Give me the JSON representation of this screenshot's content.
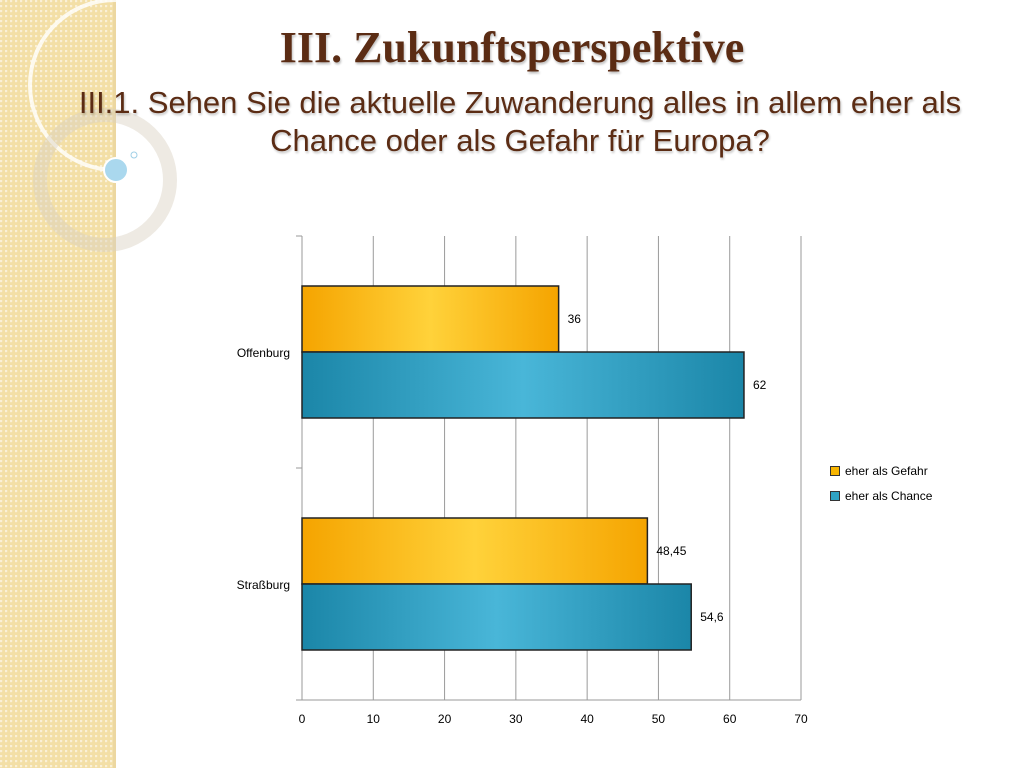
{
  "slide": {
    "title": "III. Zukunftsperspektive",
    "subtitle": "III.1. Sehen Sie die aktuelle Zuwanderung alles in allem eher als Chance oder als Gefahr für Europa?"
  },
  "colors": {
    "title": "#5b2c14",
    "series_gefahr": "#f7b500",
    "series_chance": "#2fa3c4",
    "side_band": "#f3dfa6"
  },
  "chart_data": {
    "type": "bar",
    "orientation": "horizontal",
    "categories": [
      "Offenburg",
      "Straßburg"
    ],
    "series": [
      {
        "name": "eher als Gefahr",
        "values": [
          36,
          48.45
        ],
        "labels": [
          "36",
          "48,45"
        ]
      },
      {
        "name": "eher als Chance",
        "values": [
          62,
          54.6
        ],
        "labels": [
          "62",
          "54,6"
        ]
      }
    ],
    "xlim": [
      0,
      70
    ],
    "x_ticks": [
      0,
      10,
      20,
      30,
      40,
      50,
      60,
      70
    ],
    "grid": true,
    "legend": "right",
    "title": "",
    "xlabel": "",
    "ylabel": ""
  }
}
